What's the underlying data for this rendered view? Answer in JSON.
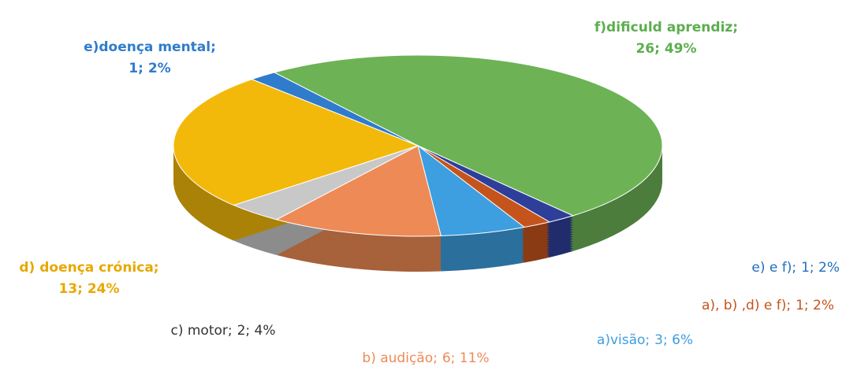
{
  "chart_data": {
    "type": "pie",
    "categories": [
      "f)dificuld aprendiz;",
      "e) e  f);",
      "a), b) ,d) e f);",
      "a)visão;",
      "b) audição;",
      "c) motor;",
      "d) doença crónica;",
      "e)doença mental;"
    ],
    "values": [
      26,
      1,
      1,
      3,
      6,
      2,
      13,
      1
    ],
    "value_labels": [
      "26; 49%",
      "1; 2%",
      "1; 2%",
      "3; 6%",
      "6; 11%",
      "2; 4%",
      "13; 24%",
      "1; 2%"
    ],
    "colors": [
      "#6db356",
      "#2e3f9a",
      "#c5541c",
      "#3d9ee0",
      "#ee8a55",
      "#c8c8c8",
      "#f3b90a",
      "#2f7ccc"
    ],
    "label_colors": [
      "#5cae4f",
      "#1f6fbf",
      "#c5541c",
      "#3d9ee0",
      "#ee8a55",
      "#333333",
      "#e8a800",
      "#2f7ccc"
    ]
  }
}
